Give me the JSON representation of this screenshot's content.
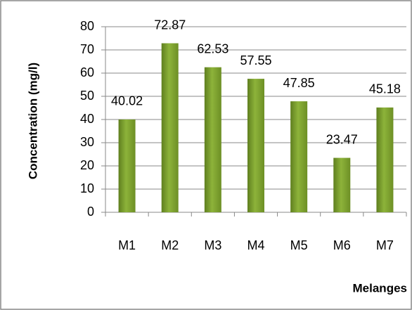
{
  "chart_data": {
    "type": "bar",
    "y_label": "Concentration (mg/l)",
    "x_label": "Melanges",
    "categories": [
      "M1",
      "M2",
      "M3",
      "M4",
      "M5",
      "M6",
      "M7"
    ],
    "values": [
      40.02,
      72.87,
      62.53,
      57.55,
      47.85,
      23.47,
      45.18
    ],
    "color": "#8db33a",
    "ylim": [
      0,
      80
    ],
    "yticks": [
      0,
      10,
      20,
      30,
      40,
      50,
      60,
      70,
      80
    ],
    "grid": true
  }
}
